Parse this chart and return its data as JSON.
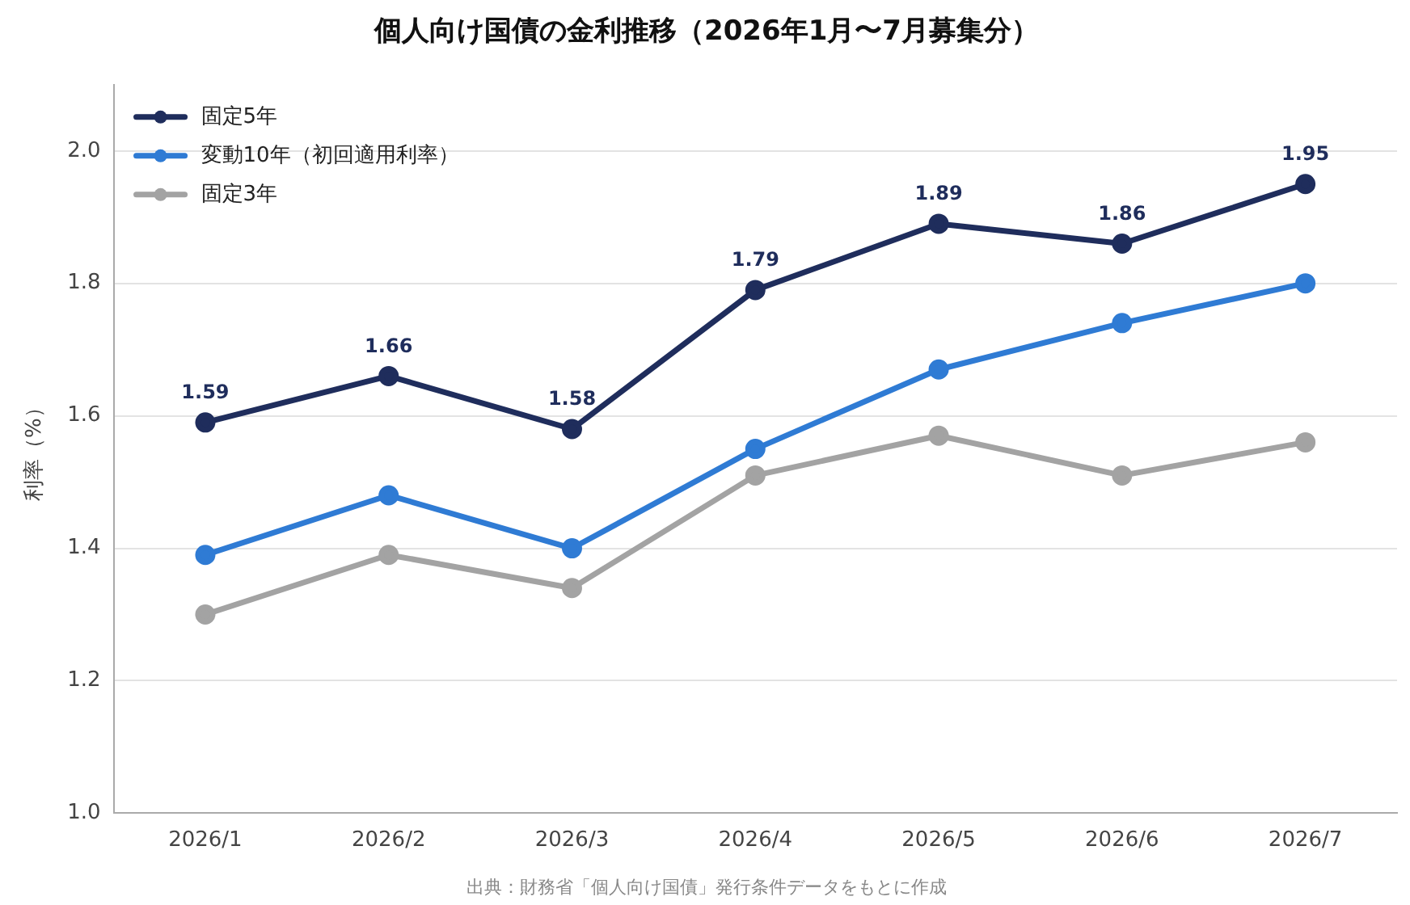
{
  "chart_data": {
    "type": "line",
    "title": "個人向け国債の金利推移（2026年1月〜7月募集分）",
    "ylabel": "利率（%）",
    "annotations": [
      "出典：財務省「個人向け国債」発行条件データをもとに作成"
    ],
    "categories": [
      "2026/1",
      "2026/2",
      "2026/3",
      "2026/4",
      "2026/5",
      "2026/6",
      "2026/7"
    ],
    "series": [
      {
        "name": "固定5年",
        "color": "#1f2d5c",
        "values": [
          1.59,
          1.66,
          1.58,
          1.79,
          1.89,
          1.86,
          1.95
        ],
        "value_labels": [
          "1.59",
          "1.66",
          "1.58",
          "1.79",
          "1.89",
          "1.86",
          "1.95"
        ]
      },
      {
        "name": "変動10年（初回適用利率）",
        "color": "#2f7bd4",
        "values": [
          1.39,
          1.48,
          1.4,
          1.55,
          1.67,
          1.74,
          1.8
        ]
      },
      {
        "name": "固定3年",
        "color": "#a3a3a3",
        "values": [
          1.3,
          1.39,
          1.34,
          1.51,
          1.57,
          1.51,
          1.56
        ]
      }
    ],
    "ylim": [
      1.0,
      2.1
    ],
    "yticks": [
      {
        "value": 1.0,
        "label": "1.0"
      },
      {
        "value": 1.2,
        "label": "1.2"
      },
      {
        "value": 1.4,
        "label": "1.4"
      },
      {
        "value": 1.6,
        "label": "1.6"
      },
      {
        "value": 1.8,
        "label": "1.8"
      },
      {
        "value": 2.0,
        "label": "2.0"
      }
    ],
    "grid": "y",
    "legend": "top left",
    "marker": "circle",
    "line_style": "solid"
  }
}
